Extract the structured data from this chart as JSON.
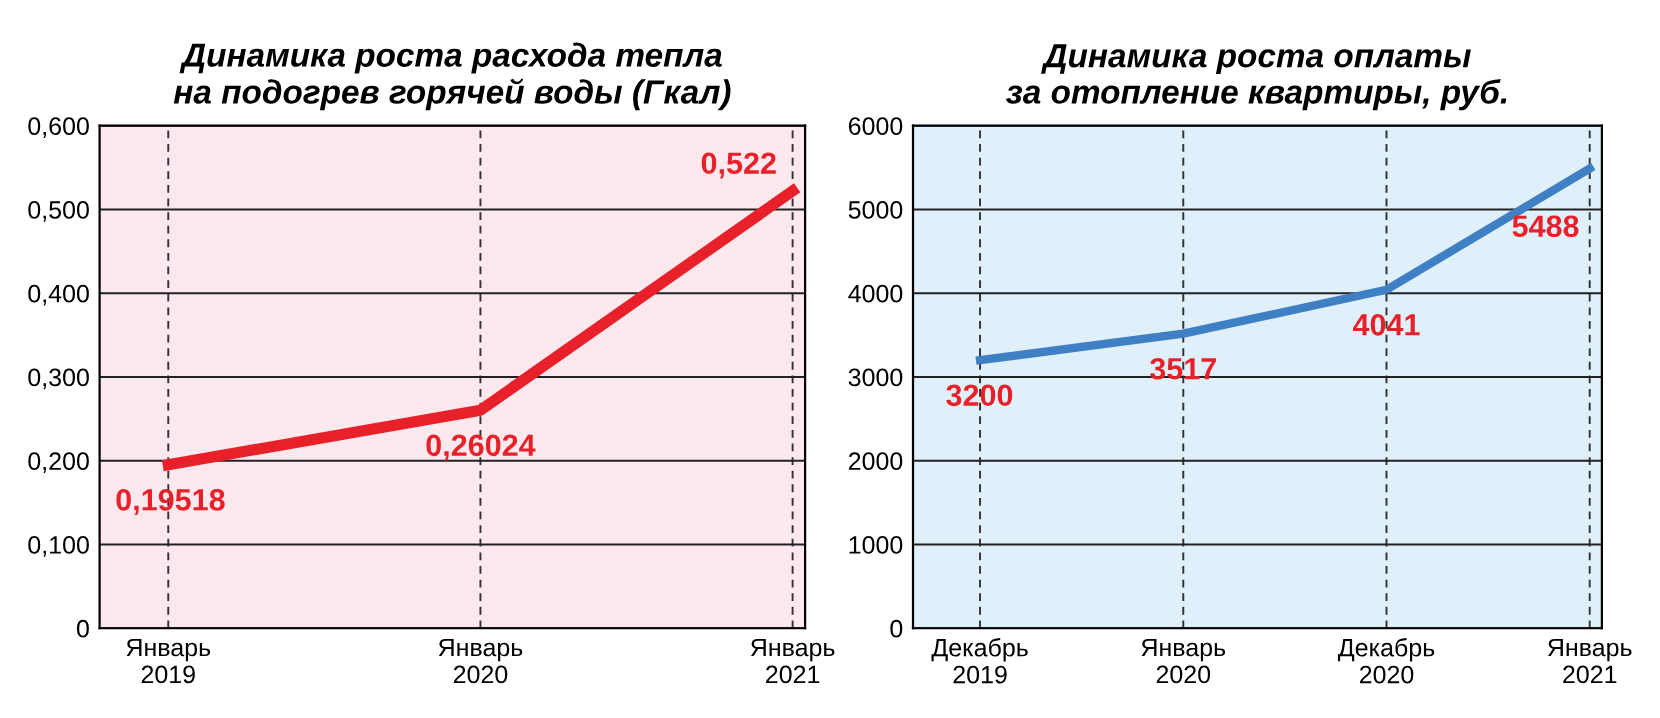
{
  "chart_data": [
    {
      "type": "line",
      "title": "Динамика роста расхода тепла\nна подогрев горячей воды (Гкал)",
      "categories": [
        "Январь\n2019",
        "Январь\n2020",
        "Январь\n2021"
      ],
      "series": [
        {
          "color": "#e8202a",
          "values": [
            0.19518,
            0.26024,
            0.522
          ],
          "value_labels": [
            "0,19518",
            "0,26024",
            "0,522"
          ]
        }
      ],
      "ylim": [
        0,
        0.6
      ],
      "yticks": [
        0,
        {
          "value": 0.1,
          "label": "0,100"
        },
        {
          "value": 0.2,
          "label": "0,200"
        },
        {
          "value": 0.3,
          "label": "0,300"
        },
        {
          "value": 0.4,
          "label": "0,400"
        },
        {
          "value": 0.5,
          "label": "0,500"
        },
        {
          "value": 0.6,
          "label": "0,600"
        }
      ],
      "grid": true,
      "legend": false,
      "marker": "none",
      "line_style": "solid"
    },
    {
      "type": "line",
      "title": "Динамика роста оплаты\nза отопление квартиры, руб.",
      "categories": [
        "Декабрь\n2019",
        "Январь\n2020",
        "Декабрь\n2020",
        "Январь\n2021"
      ],
      "series": [
        {
          "color": "#3f7fc3",
          "values": [
            3200,
            3517,
            4041,
            5488
          ]
        }
      ],
      "ylim": [
        0,
        6000
      ],
      "yticks": [
        0,
        1000,
        2000,
        3000,
        4000,
        5000,
        6000
      ],
      "grid": true,
      "legend": false,
      "marker": "none",
      "line_style": "solid",
      "data_labels": true
    }
  ]
}
